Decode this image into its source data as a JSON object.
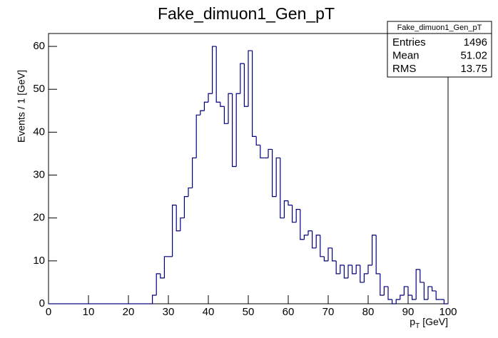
{
  "chart_data": {
    "type": "histogram",
    "title": "Fake_dimuon1_Gen_pT",
    "xlabel": [
      "p",
      "T",
      "[GeV]"
    ],
    "ylabel": "Events / 1 [GeV]",
    "bins": [
      0,
      1,
      2,
      3,
      4,
      5,
      6,
      7,
      8,
      9,
      10,
      11,
      12,
      13,
      14,
      15,
      16,
      17,
      18,
      19,
      20,
      21,
      22,
      23,
      24,
      25,
      26,
      27,
      28,
      29,
      30,
      31,
      32,
      33,
      34,
      35,
      36,
      37,
      38,
      39,
      40,
      41,
      42,
      43,
      44,
      45,
      46,
      47,
      48,
      49,
      50,
      51,
      52,
      53,
      54,
      55,
      56,
      57,
      58,
      59,
      60,
      61,
      62,
      63,
      64,
      65,
      66,
      67,
      68,
      69,
      70,
      71,
      72,
      73,
      74,
      75,
      76,
      77,
      78,
      79,
      80,
      81,
      82,
      83,
      84,
      85,
      86,
      87,
      88,
      89,
      90,
      91,
      92,
      93,
      94,
      95,
      96,
      97,
      98,
      99,
      100
    ],
    "values": [
      0,
      0,
      0,
      0,
      0,
      0,
      0,
      0,
      0,
      0,
      0,
      0,
      0,
      0,
      0,
      0,
      0,
      0,
      0,
      0,
      0,
      0,
      0,
      0,
      0,
      0,
      2,
      7,
      6,
      11,
      11,
      23,
      17,
      20,
      25,
      27,
      34,
      44,
      45,
      47,
      49,
      60,
      47,
      46,
      42,
      49,
      32,
      49,
      56,
      46,
      59,
      39,
      37,
      34,
      34,
      36,
      25,
      34,
      20,
      24,
      23,
      19,
      22,
      15,
      16,
      17,
      13,
      16,
      11,
      10,
      13,
      10,
      7,
      9,
      6,
      9,
      7,
      9,
      5,
      7,
      9,
      16,
      7,
      2,
      4,
      1,
      0,
      1,
      2,
      4,
      2,
      1,
      8,
      5,
      1,
      4,
      3,
      1,
      1,
      0,
      0
    ],
    "color": "#00007f",
    "xlim": [
      0,
      100
    ],
    "xticks": [
      0,
      10,
      20,
      30,
      40,
      50,
      60,
      70,
      80,
      90,
      100
    ],
    "ylim": [
      0,
      63
    ],
    "yticks": [
      0,
      10,
      20,
      30,
      40,
      50,
      60
    ],
    "stats": {
      "title": "Fake_dimuon1_Gen_pT",
      "rows": [
        [
          "Entries",
          1496
        ],
        [
          "Mean",
          51.02
        ],
        [
          "RMS",
          13.75
        ]
      ]
    }
  }
}
